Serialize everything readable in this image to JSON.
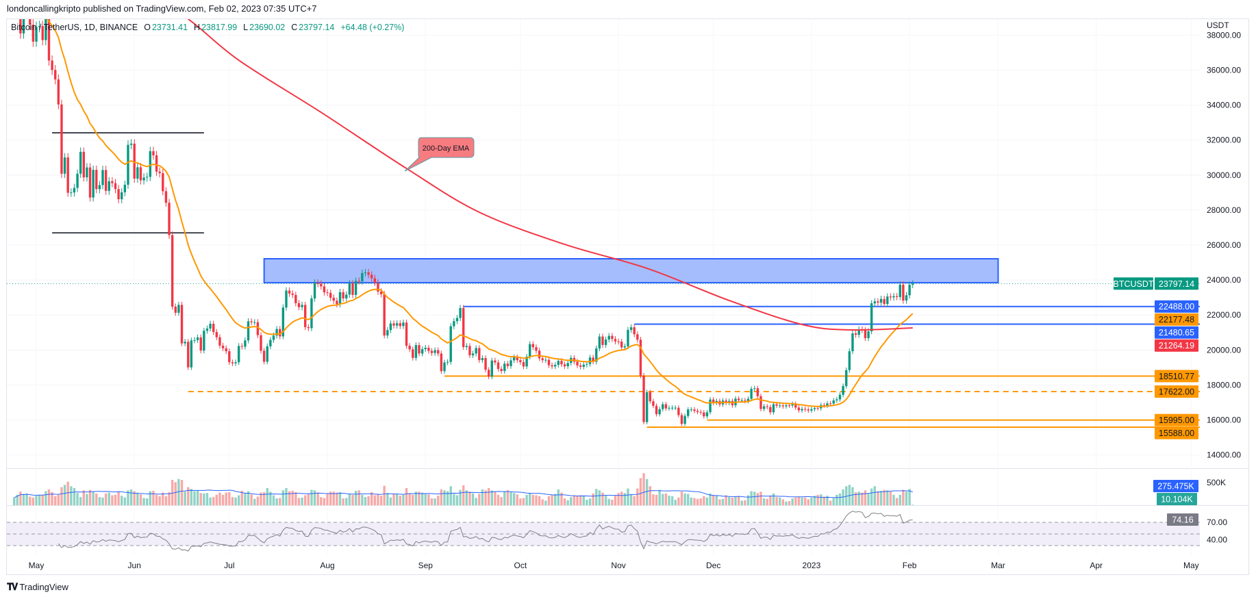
{
  "header": {
    "publisher_line": "londoncallingkripto published on TradingView.com, Feb 02, 2023 07:35 UTC+7"
  },
  "legend": {
    "symbol": "Bitcoin / TetherUS, 1D, BINANCE",
    "open_label": "O",
    "open": "23731.41",
    "high_label": "H",
    "high": "23817.99",
    "low_label": "L",
    "low": "23690.02",
    "close_label": "C",
    "close": "23797.14",
    "change": "+64.48 (+0.27%)"
  },
  "footer": {
    "brand": "TradingView",
    "logo_text": "TV"
  },
  "colors": {
    "up": "#089981",
    "down": "#f23645",
    "ema200": "#f23645",
    "ema_fast": "#ff9800",
    "blue_line": "#2962ff",
    "zone_fill": "#a5bdfd",
    "orange_line": "#ff9800",
    "callout_fill": "#f77c80",
    "rsi_line": "#7e7e86",
    "rsi_band": "#f1eef9",
    "volume_ma": "#2962ff"
  },
  "chart_data": {
    "type": "candlestick",
    "currency": "USDT",
    "price_axis": {
      "ylim": [
        13300,
        38600
      ],
      "ticks": [
        "14000.00",
        "16000.00",
        "18000.00",
        "20000.00",
        "22000.00",
        "24000.00",
        "26000.00",
        "28000.00",
        "30000.00",
        "32000.00",
        "34000.00",
        "36000.00",
        "38000.00"
      ]
    },
    "time_axis": [
      {
        "date": "2022-05-01",
        "label": "May"
      },
      {
        "date": "2022-06-01",
        "label": "Jun"
      },
      {
        "date": "2022-07-01",
        "label": "Jul"
      },
      {
        "date": "2022-08-01",
        "label": "Aug"
      },
      {
        "date": "2022-09-01",
        "label": "Sep"
      },
      {
        "date": "2022-10-01",
        "label": "Oct"
      },
      {
        "date": "2022-11-01",
        "label": "Nov"
      },
      {
        "date": "2022-12-01",
        "label": "Dec"
      },
      {
        "date": "2023-01-01",
        "label": "2023"
      },
      {
        "date": "2023-02-01",
        "label": "Feb"
      },
      {
        "date": "2023-03-01",
        "label": "Mar"
      },
      {
        "date": "2023-04-01",
        "label": "Apr"
      },
      {
        "date": "2023-05-01",
        "label": "May"
      }
    ],
    "closes_by_month": {
      "2022-04": [
        null,
        null,
        null,
        null,
        null,
        null,
        null,
        null,
        null,
        null,
        null,
        null,
        null,
        null,
        null,
        null,
        null,
        null,
        null,
        null,
        null,
        null,
        null,
        39450,
        40450,
        38100,
        39240,
        39740,
        38600,
        37630
      ],
      "2022-05": [
        38470,
        38520,
        37720,
        39690,
        36550,
        36010,
        35470,
        34040,
        30080,
        31010,
        28990,
        29010,
        29270,
        30080,
        31330,
        29870,
        30440,
        28720,
        30300,
        29200,
        29430,
        30290,
        29100,
        29650,
        29540,
        29200,
        28620,
        29020,
        29450,
        31730,
        31800
      ],
      "2022-06": [
        29800,
        30450,
        29700,
        29860,
        29900,
        31370,
        31130,
        30200,
        30110,
        29080,
        28420,
        26570,
        22480,
        22130,
        22580,
        20380,
        20470,
        19010,
        20550,
        20570,
        20720,
        19970,
        21100,
        21230,
        21500,
        21030,
        20730,
        20250,
        20100,
        19930
      ],
      "2022-07": [
        19300,
        19240,
        19300,
        20230,
        20190,
        20550,
        21640,
        21590,
        21590,
        20850,
        19960,
        19330,
        20210,
        20580,
        20830,
        21200,
        20780,
        22430,
        23400,
        23230,
        23150,
        22680,
        22450,
        22580,
        21310,
        21250,
        22950,
        23850,
        23780,
        23640,
        23300
      ],
      "2022-08": [
        23270,
        22990,
        22820,
        22620,
        23310,
        22950,
        23170,
        23810,
        23150,
        23950,
        23930,
        24400,
        24440,
        24300,
        24100,
        23850,
        23340,
        23190,
        20830,
        21140,
        21520,
        21400,
        21530,
        21370,
        21570,
        20240,
        20040,
        19550,
        20280,
        19800,
        20050
      ],
      "2022-09": [
        20130,
        19950,
        19830,
        19990,
        19800,
        18790,
        19290,
        19320,
        21360,
        21650,
        21830,
        22400,
        20170,
        20230,
        19700,
        19800,
        20110,
        19420,
        19540,
        18870,
        18480,
        19400,
        19290,
        18920,
        18800,
        19220,
        19080,
        19410,
        19590,
        19420
      ],
      "2022-10": [
        19310,
        19060,
        19620,
        20340,
        20160,
        19960,
        19530,
        19420,
        19440,
        19130,
        19060,
        19150,
        19380,
        19180,
        19070,
        19260,
        19550,
        19330,
        19120,
        19040,
        19160,
        19200,
        19570,
        19330,
        20090,
        20770,
        20290,
        20600,
        20810,
        20630,
        20490
      ],
      "2022-11": [
        20480,
        20150,
        20210,
        21150,
        21300,
        20900,
        20590,
        18540,
        15880,
        17590,
        17070,
        16810,
        16330,
        16620,
        16900,
        16660,
        16690,
        16700,
        16700,
        16280,
        15780,
        16230,
        16600,
        16600,
        16520,
        16460,
        16430,
        16210,
        16440,
        17170
      ],
      "2022-12": [
        16980,
        17090,
        16890,
        17110,
        16970,
        17090,
        16840,
        17220,
        17130,
        17130,
        17090,
        17210,
        17780,
        17810,
        17360,
        16630,
        16780,
        16740,
        16440,
        16900,
        16820,
        16830,
        16780,
        16840,
        16830,
        16920,
        16710,
        16550,
        16630,
        16600,
        16540
      ],
      "2023-01": [
        16620,
        16680,
        16670,
        16850,
        16830,
        16950,
        16940,
        17120,
        17180,
        17440,
        17940,
        18850,
        19930,
        20950,
        20870,
        21190,
        21130,
        20680,
        21070,
        22670,
        22780,
        22710,
        22920,
        22630,
        23060,
        23010,
        23080,
        23030,
        23740,
        22830,
        23130
      ],
      "2023-02": [
        23731.41,
        23797.14
      ]
    },
    "ema200": [
      [
        "2022-05-20",
        42300
      ],
      [
        "2022-06-16",
        39190
      ],
      [
        "2022-07-04",
        36570
      ],
      [
        "2022-07-30",
        33590
      ],
      [
        "2022-08-26",
        30380
      ],
      [
        "2022-09-18",
        27880
      ],
      [
        "2022-10-15",
        26040
      ],
      [
        "2022-11-10",
        24670
      ],
      [
        "2022-12-06",
        22830
      ],
      [
        "2022-12-29",
        21460
      ],
      [
        "2023-01-13",
        21150
      ],
      [
        "2023-02-02",
        21264.19
      ]
    ],
    "ema200_callout": "200-Day EMA",
    "resistance_zone": {
      "from": "2022-07-12",
      "to": "2023-03-01",
      "top": 25217,
      "bottom": 23850
    },
    "range_lines": [
      {
        "from": "2022-05-06",
        "to": "2022-06-23",
        "price": 32420
      },
      {
        "from": "2022-05-06",
        "to": "2022-06-23",
        "price": 26700
      }
    ],
    "levels": [
      {
        "from": "2022-09-13",
        "price": 22488.0,
        "label": "22488.00",
        "style": "solid",
        "color": "blue"
      },
      {
        "from": "2022-11-06",
        "price": 21480.65,
        "label": "21480.65",
        "style": "solid",
        "color": "blue"
      },
      {
        "from": "2022-09-07",
        "price": 18510.77,
        "label": "18510.77",
        "style": "solid",
        "color": "orange"
      },
      {
        "from": "2022-06-18",
        "price": 17622.0,
        "label": "17622.00",
        "style": "dashed",
        "color": "orange"
      },
      {
        "from": "2022-11-29",
        "price": 15995.0,
        "label": "15995.00",
        "style": "solid",
        "color": "orange"
      },
      {
        "from": "2022-11-10",
        "price": 15588.0,
        "label": "15588.00",
        "style": "solid",
        "color": "orange"
      }
    ],
    "last_price": {
      "symbol": "BTCUSDT",
      "price": 23797.14,
      "label": "23797.14"
    },
    "indicator_labels": [
      {
        "price": 22177.48,
        "label": "22177.48",
        "bg": "#ff9800",
        "fg": "#131722"
      },
      {
        "price": 21264.19,
        "label": "21264.19",
        "bg": "#f23645",
        "fg": "#ffffff"
      }
    ],
    "volume": {
      "unit": "K",
      "by_month": {
        "2022-04": [
          170,
          230,
          300,
          250,
          260,
          190,
          170
        ],
        "2022-05": [
          210,
          230,
          230,
          310,
          350,
          290,
          200,
          230,
          400,
          450,
          520,
          420,
          380,
          270,
          180,
          330,
          250,
          340,
          300,
          260,
          180,
          170,
          260,
          280,
          220,
          230,
          300,
          210,
          170,
          330,
          350
        ],
        "2022-06": [
          310,
          280,
          240,
          160,
          150,
          310,
          320,
          230,
          200,
          280,
          200,
          290,
          560,
          510,
          580,
          560,
          300,
          400,
          360,
          310,
          320,
          270,
          260,
          270,
          170,
          180,
          230,
          280,
          230,
          280
        ],
        "2022-07": [
          290,
          180,
          170,
          220,
          320,
          260,
          310,
          240,
          140,
          190,
          280,
          290,
          380,
          300,
          220,
          150,
          160,
          330,
          380,
          310,
          320,
          290,
          160,
          170,
          220,
          260,
          340,
          330,
          280,
          180,
          160
        ],
        "2022-08": [
          250,
          300,
          300,
          280,
          290,
          150,
          160,
          250,
          230,
          320,
          330,
          230,
          180,
          200,
          290,
          220,
          240,
          210,
          430,
          270,
          170,
          250,
          250,
          210,
          230,
          380,
          250,
          230,
          300,
          300,
          280
        ],
        "2022-09": [
          260,
          240,
          150,
          150,
          210,
          350,
          330,
          310,
          420,
          250,
          220,
          340,
          440,
          330,
          300,
          260,
          160,
          250,
          350,
          330,
          380,
          330,
          300,
          230,
          180,
          310,
          330,
          290,
          270,
          240
        ],
        "2022-10": [
          150,
          160,
          230,
          270,
          230,
          220,
          200,
          130,
          100,
          200,
          230,
          250,
          350,
          280,
          150,
          110,
          180,
          220,
          200,
          220,
          210,
          120,
          150,
          260,
          360,
          330,
          280,
          210,
          140,
          120,
          210
        ],
        "2022-11": [
          270,
          300,
          270,
          370,
          240,
          200,
          370,
          600,
          710,
          580,
          420,
          240,
          230,
          340,
          250,
          260,
          210,
          200,
          120,
          170,
          300,
          260,
          250,
          170,
          160,
          140,
          150,
          200,
          170,
          260
        ],
        "2022-12": [
          230,
          220,
          130,
          140,
          220,
          180,
          170,
          190,
          200,
          100,
          110,
          220,
          310,
          300,
          270,
          300,
          150,
          140,
          210,
          260,
          180,
          170,
          130,
          80,
          90,
          150,
          170,
          190,
          170,
          170,
          130
        ],
        "2023-01": [
          170,
          210,
          230,
          240,
          190,
          210,
          100,
          160,
          230,
          260,
          350,
          420,
          450,
          400,
          290,
          300,
          280,
          330,
          260,
          370,
          420,
          310,
          320,
          340,
          330,
          300,
          230,
          160,
          230,
          340,
          300
        ],
        "2023-02": [
          360,
          10.104
        ]
      },
      "axis_tick": "500K",
      "ma_label": "275.475K",
      "last_label": "10.104K"
    },
    "rsi": {
      "value_label": "74.16",
      "levels": [
        70,
        50,
        30
      ],
      "tick_70": "70.00",
      "tick_40": "40.00"
    }
  }
}
